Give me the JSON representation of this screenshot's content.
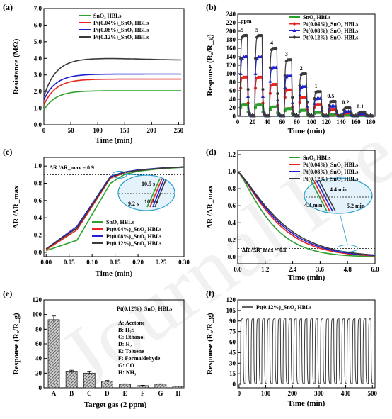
{
  "colors": {
    "green": "#2ca02c",
    "red": "#e8251e",
    "blue": "#1f1fd6",
    "gray": "#3a3a3a"
  },
  "watermark": "Journal Pre-proof",
  "panels": {
    "a": {
      "label": "(a)",
      "xlabel": "Time (min)",
      "ylabel": "Resistance (MΩ)",
      "xticks": [
        "0",
        "50",
        "100",
        "150",
        "200",
        "250"
      ],
      "yticks": [
        "0.0",
        "1.0",
        "2.0",
        "3.0",
        "4.0",
        "5.0",
        "6.0",
        "7.0"
      ],
      "legend": [
        "SnO₂ HBLs",
        "Pt(0.04%)_SnO₂ HBLs",
        "Pt(0.08%)_SnO₂ HBLs",
        "Pt(0.12%)_SnO₂ HBLs"
      ]
    },
    "b": {
      "label": "(b)",
      "xlabel": "Time (min)",
      "ylabel": "Response (Rₐ/R_g)",
      "xticks": [
        "0",
        "20",
        "40",
        "60",
        "80",
        "100",
        "120",
        "140",
        "160",
        "180"
      ],
      "yticks": [
        "0",
        "20",
        "40",
        "60",
        "80",
        "100",
        "120",
        "140",
        "160",
        "180",
        "200",
        "220",
        "240"
      ],
      "legend": [
        "SnO₂ HBLs",
        "Pt(0.04%)_SnO₂ HBLs",
        "Pt(0.08%)_SnO₂ HBLs",
        "Pt(0.12%)_SnO₂ HBLs"
      ],
      "unit_label": "ppm",
      "conc_labels": [
        "5",
        "5",
        "4",
        "3",
        "2",
        "1",
        "0.5",
        "0.2",
        "0.1"
      ]
    },
    "c": {
      "label": "(c)",
      "xlabel": "Time (min)",
      "ylabel": "ΔR /ΔR_max",
      "xticks": [
        "0.00",
        "0.05",
        "0.10",
        "0.15",
        "0.20",
        "0.25",
        "0.30"
      ],
      "yticks": [
        "0.0",
        "0.2",
        "0.4",
        "0.6",
        "0.8",
        "1.0"
      ],
      "legend": [
        "SnO₂ HBLs",
        "Pt(0.04%)_SnO₂ HBLs",
        "Pt(0.08%)_SnO₂ HBLs",
        "Pt(0.12%)_SnO₂ HBLs"
      ],
      "threshold_label": "ΔR /ΔR_max = 0.9",
      "inset_labels": [
        "10.5 s",
        "9.2 s",
        "10.3 s"
      ]
    },
    "d": {
      "label": "(d)",
      "xlabel": "Time (min)",
      "ylabel": "ΔR /ΔR_max",
      "xticks": [
        "0.0",
        "1.2",
        "2.4",
        "3.6",
        "4.8",
        "6.0"
      ],
      "yticks": [
        "0.0",
        "0.2",
        "0.4",
        "0.6",
        "0.8",
        "1.0",
        "1.2"
      ],
      "legend": [
        "SnO₂ HBLs",
        "Pt(0.04%)_SnO₂ HBLs",
        "Pt(0.08%)_SnO₂ HBLs",
        "Pt(0.12%)_SnO₂ HBLs"
      ],
      "threshold_label": "ΔR /ΔR_max = 0.1",
      "inset_labels": [
        "4.4 min",
        "4.3 min",
        "5.2 min"
      ]
    },
    "e": {
      "label": "(e)",
      "xlabel": "Target gas (2 ppm)",
      "ylabel": "Response (Rₐ/R_g)",
      "yticks": [
        "0",
        "20",
        "40",
        "60",
        "80",
        "100",
        "120"
      ],
      "title": "Pt(0.12%)_SnO₂ HBLs",
      "categories": [
        "A",
        "B",
        "C",
        "D",
        "E",
        "F",
        "G",
        "H"
      ],
      "key": [
        "A: Acetone",
        "B: H₂S",
        "C: Ethanol",
        "D: H₂",
        "E: Toluene",
        "F: Formaldehyde",
        "G: CO",
        "H: NH₃"
      ]
    },
    "f": {
      "label": "(f)",
      "xlabel": "Time (min)",
      "ylabel": "Response (Rₐ/R_g)",
      "xticks": [
        "0",
        "100",
        "200",
        "300",
        "400",
        "500"
      ],
      "yticks": [
        "0",
        "15",
        "30",
        "45",
        "60",
        "75",
        "90",
        "105",
        "120"
      ],
      "legend": [
        "Pt(0.12%)_SnO₂ HBLs"
      ]
    }
  },
  "chart_data": [
    {
      "type": "line",
      "panel": "a",
      "xlabel": "Time (min)",
      "ylabel": "Resistance (MΩ)",
      "xlim": [
        0,
        260
      ],
      "ylim": [
        0,
        7
      ],
      "series": [
        {
          "name": "SnO₂ HBLs",
          "plateau": 2.05,
          "start": 0.9
        },
        {
          "name": "Pt(0.04%)_SnO₂ HBLs",
          "plateau": 2.75,
          "start": 1.2
        },
        {
          "name": "Pt(0.08%)_SnO₂ HBLs",
          "plateau": 3.05,
          "start": 1.5
        },
        {
          "name": "Pt(0.12%)_SnO₂ HBLs",
          "plateau": 3.95,
          "start": 1.7
        }
      ]
    },
    {
      "type": "line",
      "panel": "b",
      "xlabel": "Time (min)",
      "ylabel": "Response (Rₐ/R_g)",
      "xlim": [
        0,
        186
      ],
      "ylim": [
        0,
        240
      ],
      "cycle_starts": [
        3,
        23,
        43,
        63,
        83,
        103,
        123,
        143,
        163
      ],
      "concentrations_ppm": [
        5,
        5,
        4,
        3,
        2,
        1,
        0.5,
        0.2,
        0.1
      ],
      "series": [
        {
          "name": "SnO₂ HBLs",
          "peaks": [
            28,
            28,
            22,
            18,
            14,
            9,
            5,
            3,
            2
          ]
        },
        {
          "name": "Pt(0.04%)_SnO₂ HBLs",
          "peaks": [
            92,
            92,
            75,
            62,
            45,
            28,
            15,
            8,
            4
          ]
        },
        {
          "name": "Pt(0.08%)_SnO₂ HBLs",
          "peaks": [
            140,
            140,
            115,
            95,
            70,
            42,
            24,
            12,
            6
          ]
        },
        {
          "name": "Pt(0.12%)_SnO₂ HBLs",
          "peaks": [
            190,
            190,
            160,
            133,
            100,
            58,
            35,
            20,
            10
          ]
        }
      ]
    },
    {
      "type": "line",
      "panel": "c",
      "xlabel": "Time (min)",
      "ylabel": "ΔR /ΔR_max",
      "xlim": [
        -0.005,
        0.3
      ],
      "ylim": [
        -0.05,
        1.1
      ],
      "series": [
        {
          "name": "SnO₂ HBLs",
          "x": [
            0,
            0.067,
            0.14,
            0.17,
            0.2,
            0.25,
            0.3
          ],
          "y": [
            0.02,
            0.14,
            0.8,
            0.9,
            0.94,
            0.97,
            0.985
          ]
        },
        {
          "name": "Pt(0.04%)_SnO₂ HBLs",
          "x": [
            0,
            0.067,
            0.14,
            0.17,
            0.2,
            0.25,
            0.3
          ],
          "y": [
            0.03,
            0.26,
            0.86,
            0.92,
            0.95,
            0.975,
            0.99
          ]
        },
        {
          "name": "Pt(0.08%)_SnO₂ HBLs",
          "x": [
            0,
            0.067,
            0.14,
            0.17,
            0.2,
            0.25,
            0.3
          ],
          "y": [
            0.04,
            0.3,
            0.88,
            0.93,
            0.955,
            0.978,
            0.99
          ]
        },
        {
          "name": "Pt(0.12%)_SnO₂ HBLs",
          "x": [
            0,
            0.067,
            0.14,
            0.17,
            0.2,
            0.25,
            0.3
          ],
          "y": [
            0.04,
            0.28,
            0.87,
            0.925,
            0.95,
            0.975,
            0.99
          ]
        }
      ],
      "threshold": 0.9
    },
    {
      "type": "line",
      "panel": "d",
      "xlabel": "Time (min)",
      "ylabel": "ΔR /ΔR_max",
      "xlim": [
        0,
        6
      ],
      "ylim": [
        -0.08,
        1.25
      ],
      "series": [
        {
          "name": "SnO₂ HBLs",
          "tau": 1.55
        },
        {
          "name": "Pt(0.04%)_SnO₂ HBLs",
          "tau": 1.85
        },
        {
          "name": "Pt(0.08%)_SnO₂ HBLs",
          "tau": 1.95
        },
        {
          "name": "Pt(0.12%)_SnO₂ HBLs",
          "tau": 2.05
        }
      ],
      "threshold": 0.1
    },
    {
      "type": "bar",
      "panel": "e",
      "xlabel": "Target gas (2 ppm)",
      "ylabel": "Response (Rₐ/R_g)",
      "ylim": [
        0,
        120
      ],
      "categories": [
        "A",
        "B",
        "C",
        "D",
        "E",
        "F",
        "G",
        "H"
      ],
      "values": [
        93,
        22,
        20,
        9,
        5,
        3,
        5,
        2
      ],
      "errors": [
        5,
        2,
        2,
        1,
        0.5,
        0.5,
        0.5,
        0.3
      ]
    },
    {
      "type": "line",
      "panel": "f",
      "xlabel": "Time (min)",
      "ylabel": "Response (Rₐ/R_g)",
      "xlim": [
        -5,
        510
      ],
      "ylim": [
        -5,
        120
      ],
      "series": [
        {
          "name": "Pt(0.12%)_SnO₂ HBLs",
          "cycles": 25,
          "period_min": 20,
          "high": 93,
          "low": 1
        }
      ]
    }
  ]
}
